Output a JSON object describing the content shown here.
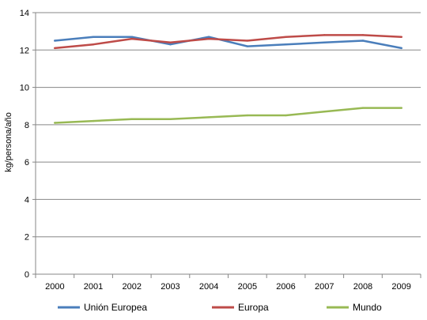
{
  "chart_data": {
    "type": "line",
    "title": "",
    "xlabel": "",
    "ylabel": "kg/persona/año",
    "ylim": [
      0,
      14
    ],
    "yticks": [
      0,
      2,
      4,
      6,
      8,
      10,
      12,
      14
    ],
    "categories": [
      "2000",
      "2001",
      "2002",
      "2003",
      "2004",
      "2005",
      "2006",
      "2007",
      "2008",
      "2009"
    ],
    "grid": "horizontal",
    "legend_position": "bottom",
    "series": [
      {
        "name": "Unión Europea",
        "color": "#4a7ebb",
        "values": [
          12.5,
          12.7,
          12.7,
          12.3,
          12.7,
          12.2,
          12.3,
          12.4,
          12.5,
          12.1
        ]
      },
      {
        "name": "Europa",
        "color": "#be4b48",
        "values": [
          12.1,
          12.3,
          12.6,
          12.4,
          12.6,
          12.5,
          12.7,
          12.8,
          12.8,
          12.7
        ]
      },
      {
        "name": "Mundo",
        "color": "#98b954",
        "values": [
          8.1,
          8.2,
          8.3,
          8.3,
          8.4,
          8.5,
          8.5,
          8.7,
          8.9,
          8.9
        ]
      }
    ]
  }
}
